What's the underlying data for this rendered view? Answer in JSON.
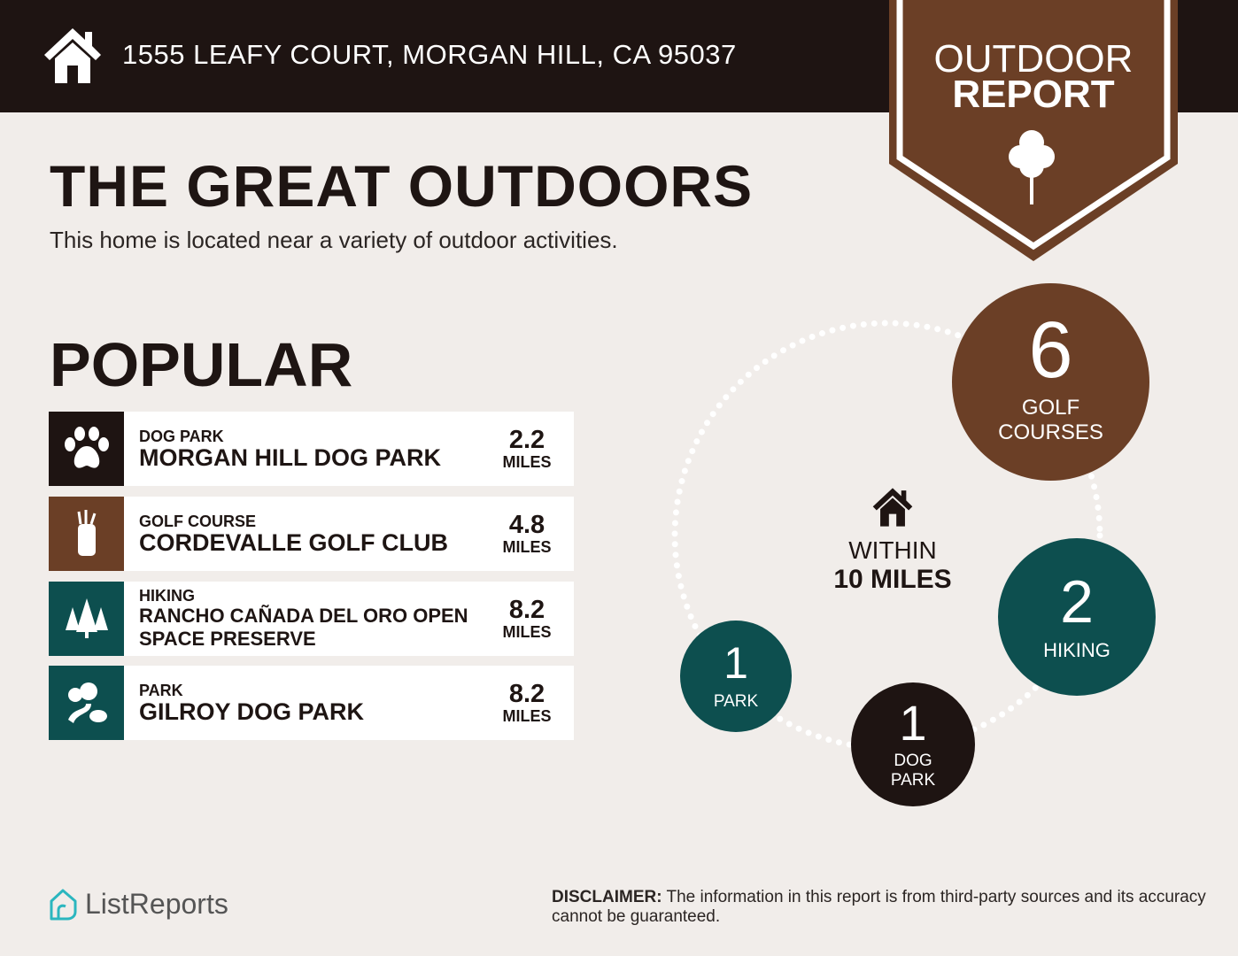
{
  "header": {
    "address": "1555 LEAFY COURT, MORGAN HILL, CA 95037",
    "badge_line1": "OUTDOOR",
    "badge_line2": "REPORT"
  },
  "title": "THE GREAT OUTDOORS",
  "subtitle": "This home is located near a variety of outdoor activities.",
  "popular": {
    "heading": "POPULAR",
    "items": [
      {
        "category": "DOG PARK",
        "name": "MORGAN HILL DOG PARK",
        "distance": "2.2",
        "unit": "MILES",
        "icon": "paw-icon",
        "color": "#1e1412"
      },
      {
        "category": "GOLF COURSE",
        "name": "CORDEVALLE GOLF CLUB",
        "distance": "4.8",
        "unit": "MILES",
        "icon": "golf-bag-icon",
        "color": "#6b3f26"
      },
      {
        "category": "HIKING",
        "name": "RANCHO CAÑADA DEL ORO OPEN SPACE PRESERVE",
        "distance": "8.2",
        "unit": "MILES",
        "icon": "pine-trees-icon",
        "color": "#0d4f4f"
      },
      {
        "category": "PARK",
        "name": "GILROY DOG PARK",
        "distance": "8.2",
        "unit": "MILES",
        "icon": "park-trees-icon",
        "color": "#0d4f4f"
      }
    ]
  },
  "summary": {
    "within_line1": "WITHIN",
    "within_line2": "10 MILES",
    "counts": [
      {
        "count": "6",
        "label": "GOLF COURSES",
        "color": "#6b3f26"
      },
      {
        "count": "2",
        "label": "HIKING",
        "color": "#0d4f4f"
      },
      {
        "count": "1",
        "label": "DOG PARK",
        "color": "#1e1412"
      },
      {
        "count": "1",
        "label": "PARK",
        "color": "#0d4f4f"
      }
    ]
  },
  "footer": {
    "logo": "ListReports",
    "disclaimer_label": "DISCLAIMER:",
    "disclaimer_text": " The information in this report is from third-party sources and its accuracy cannot be guaranteed."
  }
}
